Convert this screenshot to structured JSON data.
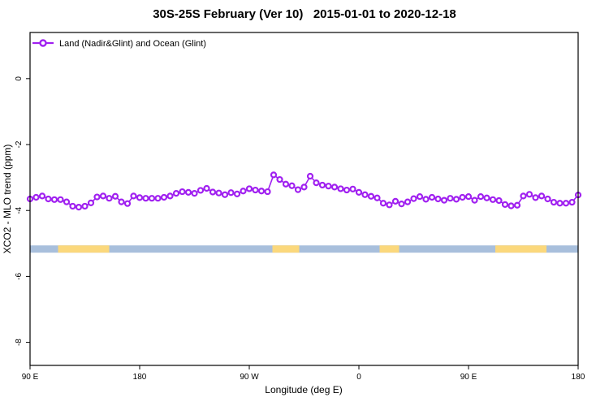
{
  "title": "30S-25S February (Ver 10)   2015-01-01 to 2020-12-18",
  "chart_data": {
    "type": "line",
    "title": "30S-25S February (Ver 10)   2015-01-01 to 2020-12-18",
    "xlabel": "Longitude (deg E)",
    "ylabel": "XCO2 - MLO trend (ppm)",
    "xlim": [
      90,
      540
    ],
    "ylim": [
      -8.7,
      1.4
    ],
    "grid": false,
    "x_ticks": [
      {
        "value": 90,
        "label": "90 E"
      },
      {
        "value": 180,
        "label": "180"
      },
      {
        "value": 270,
        "label": "90 W"
      },
      {
        "value": 360,
        "label": "0"
      },
      {
        "value": 450,
        "label": "90 E"
      },
      {
        "value": 540,
        "label": "180"
      }
    ],
    "y_ticks": [
      {
        "value": 0,
        "label": "0"
      },
      {
        "value": -2,
        "label": "-2"
      },
      {
        "value": -4,
        "label": "-4"
      },
      {
        "value": -6,
        "label": "-6"
      },
      {
        "value": -8,
        "label": "-8"
      }
    ],
    "legend": {
      "position": "top-left",
      "entries": [
        {
          "label": "Land (Nadir&Glint) and Ocean (Glint)",
          "color": "#A020F0",
          "marker": "open-circle"
        }
      ]
    },
    "band": {
      "description": "surface-type band (ocean=blue, land=yellow)",
      "y_top": -5.06,
      "y_bottom": -5.28,
      "range": [
        90,
        540
      ],
      "ocean_color": "#A8BFDC",
      "land_color": "#FBD87C",
      "land_segments": [
        [
          113,
          155
        ],
        [
          289,
          311
        ],
        [
          377,
          393
        ],
        [
          472,
          514
        ]
      ]
    },
    "series": [
      {
        "name": "Land (Nadir&Glint) and Ocean (Glint)",
        "color": "#A020F0",
        "marker": "open-circle",
        "x": [
          90,
          95,
          100,
          105,
          110,
          115,
          120,
          125,
          130,
          135,
          140,
          145,
          150,
          155,
          160,
          165,
          170,
          175,
          180,
          185,
          190,
          195,
          200,
          205,
          210,
          215,
          220,
          225,
          230,
          235,
          240,
          245,
          250,
          255,
          260,
          265,
          270,
          275,
          280,
          285,
          290,
          295,
          300,
          305,
          310,
          315,
          320,
          325,
          330,
          335,
          340,
          345,
          350,
          355,
          360,
          365,
          370,
          375,
          380,
          385,
          390,
          395,
          400,
          405,
          410,
          415,
          420,
          425,
          430,
          435,
          440,
          445,
          450,
          455,
          460,
          465,
          470,
          475,
          480,
          485,
          490,
          495,
          500,
          505,
          510,
          515,
          520,
          525,
          530,
          535,
          540
        ],
        "values": [
          -3.65,
          -3.6,
          -3.56,
          -3.65,
          -3.67,
          -3.67,
          -3.74,
          -3.87,
          -3.9,
          -3.87,
          -3.77,
          -3.59,
          -3.56,
          -3.63,
          -3.57,
          -3.74,
          -3.79,
          -3.56,
          -3.61,
          -3.63,
          -3.63,
          -3.63,
          -3.6,
          -3.56,
          -3.48,
          -3.43,
          -3.45,
          -3.48,
          -3.39,
          -3.33,
          -3.44,
          -3.47,
          -3.52,
          -3.46,
          -3.5,
          -3.41,
          -3.34,
          -3.38,
          -3.41,
          -3.43,
          -2.92,
          -3.06,
          -3.2,
          -3.25,
          -3.37,
          -3.29,
          -2.96,
          -3.16,
          -3.23,
          -3.26,
          -3.29,
          -3.34,
          -3.38,
          -3.35,
          -3.45,
          -3.52,
          -3.57,
          -3.62,
          -3.78,
          -3.83,
          -3.72,
          -3.8,
          -3.74,
          -3.64,
          -3.58,
          -3.66,
          -3.6,
          -3.65,
          -3.69,
          -3.63,
          -3.66,
          -3.6,
          -3.58,
          -3.69,
          -3.58,
          -3.62,
          -3.67,
          -3.7,
          -3.82,
          -3.86,
          -3.84,
          -3.56,
          -3.51,
          -3.61,
          -3.56,
          -3.65,
          -3.75,
          -3.78,
          -3.78,
          -3.75,
          -3.53
        ]
      }
    ]
  }
}
